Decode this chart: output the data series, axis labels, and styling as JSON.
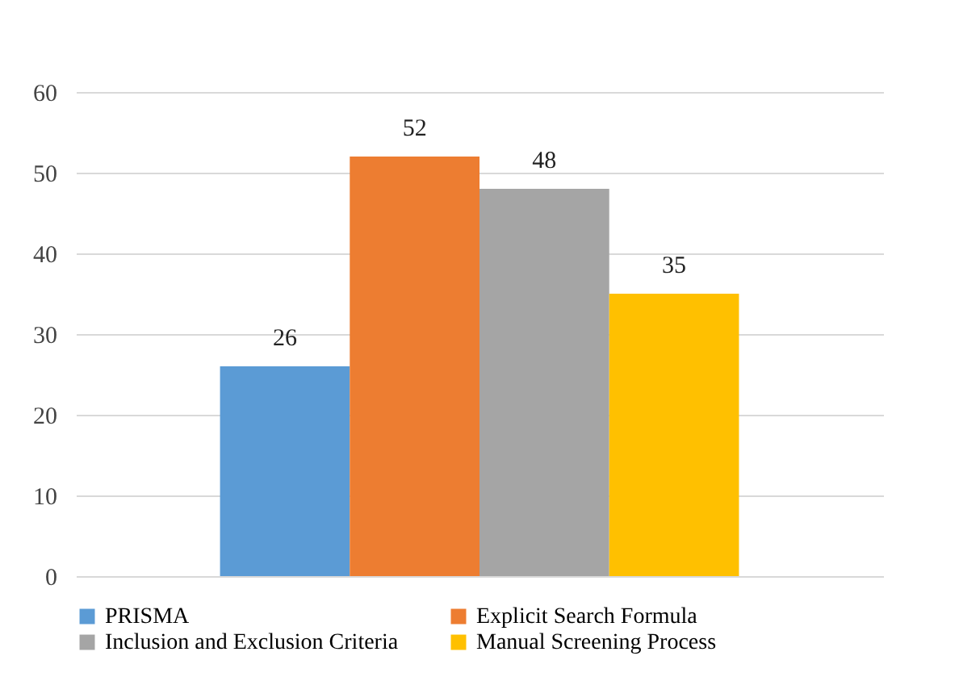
{
  "chart_data": {
    "type": "bar",
    "categories": [
      null
    ],
    "series": [
      {
        "name": "PRISMA",
        "color": "#5b9bd5",
        "values": [
          26
        ]
      },
      {
        "name": "Explicit Search Formula",
        "color": "#ed7d31",
        "values": [
          52
        ]
      },
      {
        "name": "Inclusion and Exclusion Criteria",
        "color": "#a5a5a5",
        "values": [
          48
        ]
      },
      {
        "name": "Manual Screening Process",
        "color": "#ffc000",
        "values": [
          35
        ]
      }
    ],
    "ylim": [
      0,
      60
    ],
    "yticks": [
      0,
      10,
      20,
      30,
      40,
      50,
      60
    ],
    "grid": "y",
    "legend": "bottom",
    "data_labels": true
  }
}
